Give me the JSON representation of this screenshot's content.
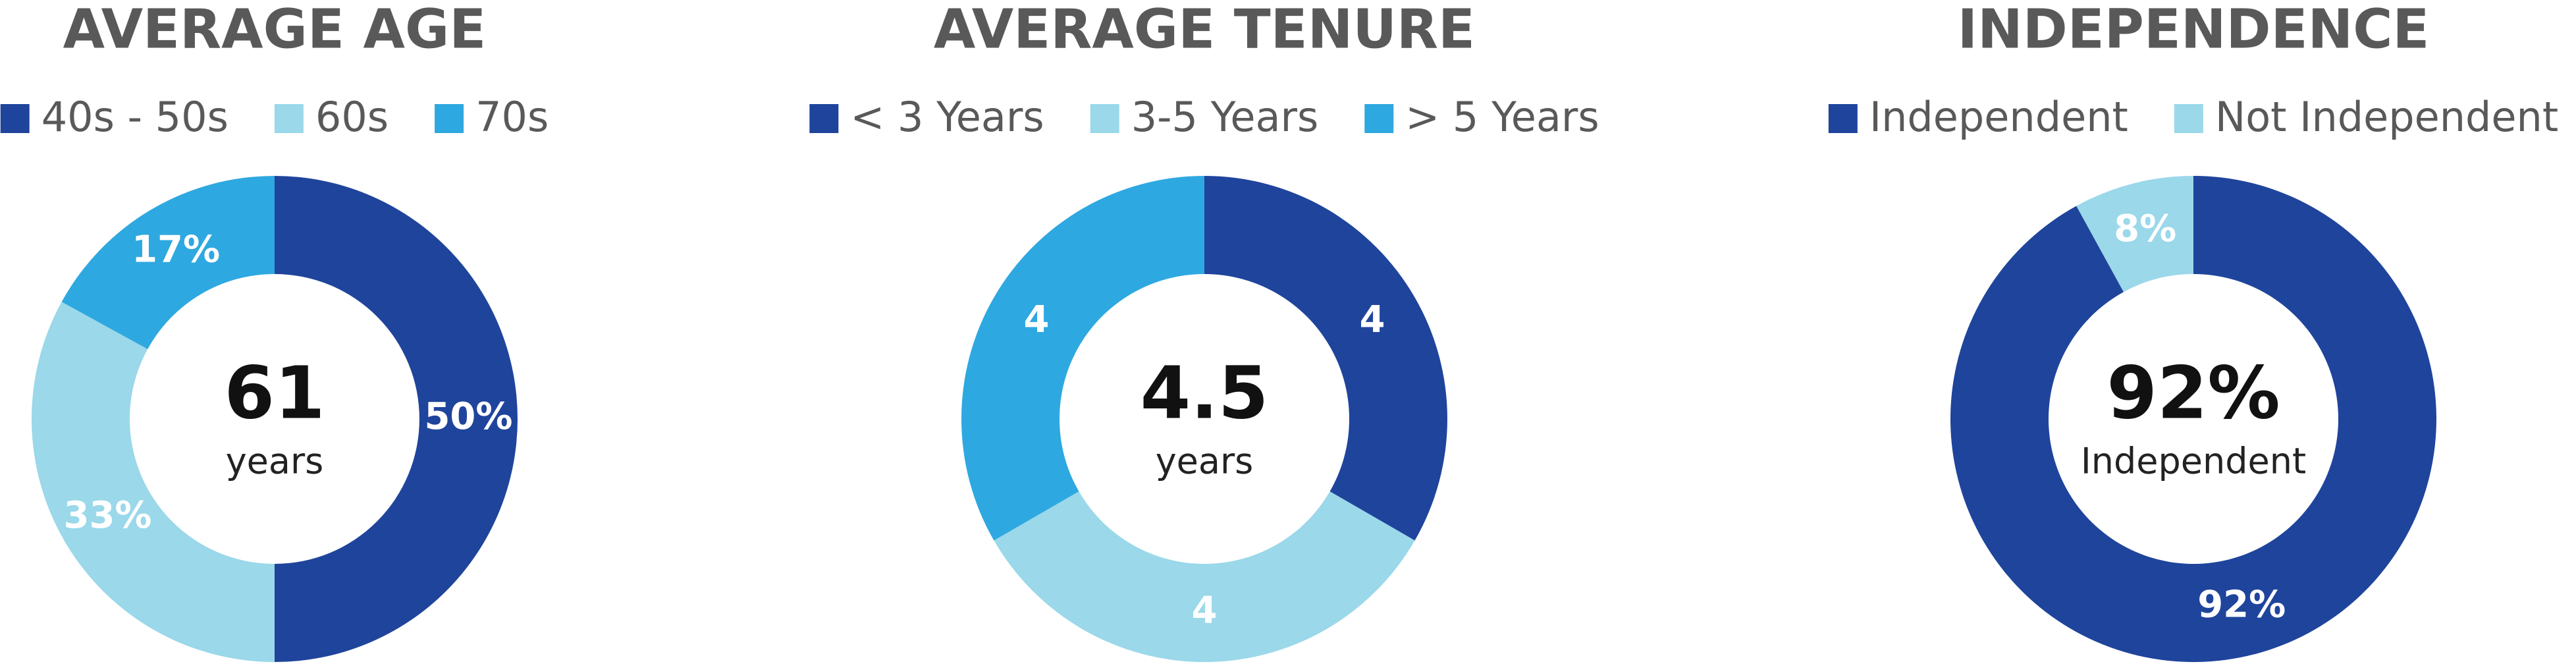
{
  "chart_data": [
    {
      "type": "donut",
      "title": "AVERAGE AGE",
      "categories": [
        "40s - 50s",
        "60s",
        "70s"
      ],
      "values": [
        50,
        33,
        17
      ],
      "value_labels": [
        "50%",
        "33%",
        "17%"
      ],
      "colors": [
        "#1f449c",
        "#9ad8ea",
        "#2ea8e0"
      ],
      "center_text": "61",
      "center_subtext": "years"
    },
    {
      "type": "donut",
      "title": "AVERAGE TENURE",
      "categories": [
        "< 3 Years",
        "3-5 Years",
        "> 5 Years"
      ],
      "values": [
        4,
        4,
        4
      ],
      "colors": [
        "#1f449c",
        "#9ad8ea",
        "#2ea8e0"
      ],
      "center_text": "4.5",
      "center_subtext": "years"
    },
    {
      "type": "donut",
      "title": "INDEPENDENCE",
      "categories": [
        "Independent",
        "Not Independent"
      ],
      "values": [
        92,
        8
      ],
      "value_labels": [
        "92%",
        "8%"
      ],
      "colors": [
        "#1f449c",
        "#9ad8ea"
      ],
      "center_text": "92%",
      "center_subtext": "Independent"
    }
  ]
}
